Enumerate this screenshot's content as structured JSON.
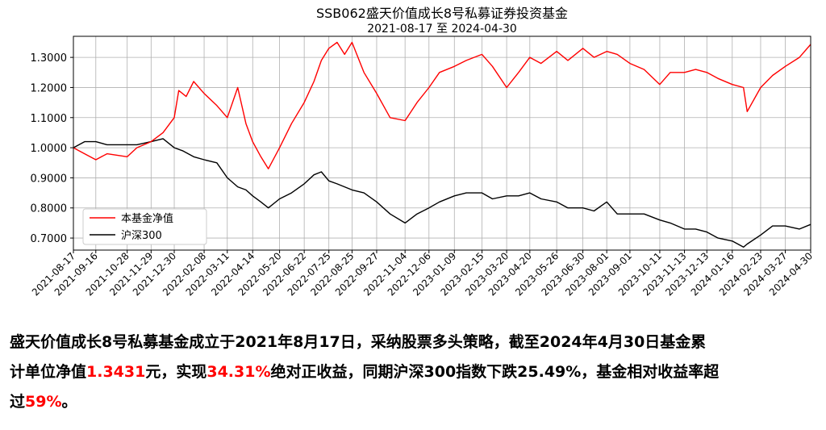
{
  "chart_data": {
    "type": "line",
    "title": "SSB062盛天价值成长8号私募证券投资基金",
    "subtitle": "2021-08-17 至 2024-04-30",
    "x_tick_labels": [
      "2021-08-17",
      "2021-09-16",
      "2021-10-28",
      "2021-11-29",
      "2021-12-30",
      "2022-02-08",
      "2022-03-11",
      "2022-04-14",
      "2022-05-20",
      "2022-06-22",
      "2022-07-25",
      "2022-08-25",
      "2022-09-27",
      "2022-11-04",
      "2022-12-06",
      "2023-01-09",
      "2023-02-15",
      "2023-03-20",
      "2023-04-20",
      "2023-05-26",
      "2023-06-30",
      "2023-08-01",
      "2023-09-01",
      "2023-10-11",
      "2023-11-13",
      "2023-12-13",
      "2024-01-16",
      "2024-02-23",
      "2024-03-27",
      "2024-04-30"
    ],
    "y_tick_labels": [
      "0.7000",
      "0.8000",
      "0.9000",
      "1.0000",
      "1.1000",
      "1.2000",
      "1.3000"
    ],
    "ylim": [
      0.66,
      1.37
    ],
    "grid": true,
    "legend_position": "lower-left",
    "series": [
      {
        "name": "本基金净值",
        "color": "#ff0000",
        "x": [
          "2021-08-17",
          "2021-09-01",
          "2021-09-16",
          "2021-10-01",
          "2021-10-28",
          "2021-11-10",
          "2021-11-29",
          "2021-12-15",
          "2021-12-30",
          "2022-01-05",
          "2022-01-15",
          "2022-01-25",
          "2022-02-08",
          "2022-02-25",
          "2022-03-11",
          "2022-03-25",
          "2022-04-05",
          "2022-04-14",
          "2022-04-25",
          "2022-05-05",
          "2022-05-20",
          "2022-06-05",
          "2022-06-22",
          "2022-07-05",
          "2022-07-15",
          "2022-07-25",
          "2022-08-05",
          "2022-08-15",
          "2022-08-25",
          "2022-09-10",
          "2022-09-27",
          "2022-10-15",
          "2022-11-04",
          "2022-11-20",
          "2022-12-06",
          "2022-12-20",
          "2023-01-09",
          "2023-01-25",
          "2023-02-15",
          "2023-03-01",
          "2023-03-20",
          "2023-04-05",
          "2023-04-20",
          "2023-05-05",
          "2023-05-26",
          "2023-06-10",
          "2023-06-30",
          "2023-07-15",
          "2023-08-01",
          "2023-08-15",
          "2023-09-01",
          "2023-09-20",
          "2023-10-11",
          "2023-10-25",
          "2023-11-13",
          "2023-11-28",
          "2023-12-13",
          "2023-12-28",
          "2024-01-16",
          "2024-01-31",
          "2024-02-05",
          "2024-02-23",
          "2024-03-10",
          "2024-03-27",
          "2024-04-15",
          "2024-04-30"
        ],
        "values": [
          1.0,
          0.98,
          0.96,
          0.98,
          0.97,
          1.0,
          1.02,
          1.05,
          1.1,
          1.19,
          1.17,
          1.22,
          1.18,
          1.14,
          1.1,
          1.2,
          1.08,
          1.02,
          0.97,
          0.93,
          1.0,
          1.08,
          1.15,
          1.22,
          1.29,
          1.33,
          1.35,
          1.31,
          1.35,
          1.25,
          1.18,
          1.1,
          1.09,
          1.15,
          1.2,
          1.25,
          1.27,
          1.29,
          1.31,
          1.27,
          1.2,
          1.25,
          1.3,
          1.28,
          1.32,
          1.29,
          1.33,
          1.3,
          1.32,
          1.31,
          1.28,
          1.26,
          1.21,
          1.25,
          1.25,
          1.26,
          1.25,
          1.23,
          1.21,
          1.2,
          1.12,
          1.2,
          1.24,
          1.27,
          1.3,
          1.3431
        ]
      },
      {
        "name": "沪深300",
        "color": "#000000",
        "x": [
          "2021-08-17",
          "2021-09-01",
          "2021-09-16",
          "2021-10-01",
          "2021-10-28",
          "2021-11-10",
          "2021-11-29",
          "2021-12-15",
          "2021-12-30",
          "2022-01-10",
          "2022-01-25",
          "2022-02-08",
          "2022-02-25",
          "2022-03-11",
          "2022-03-25",
          "2022-04-05",
          "2022-04-14",
          "2022-04-25",
          "2022-05-05",
          "2022-05-20",
          "2022-06-05",
          "2022-06-22",
          "2022-07-05",
          "2022-07-15",
          "2022-07-25",
          "2022-08-05",
          "2022-08-25",
          "2022-09-10",
          "2022-09-27",
          "2022-10-15",
          "2022-11-04",
          "2022-11-20",
          "2022-12-06",
          "2022-12-20",
          "2023-01-09",
          "2023-01-25",
          "2023-02-15",
          "2023-03-01",
          "2023-03-20",
          "2023-04-05",
          "2023-04-20",
          "2023-05-05",
          "2023-05-26",
          "2023-06-10",
          "2023-06-30",
          "2023-07-15",
          "2023-08-01",
          "2023-08-15",
          "2023-09-01",
          "2023-09-20",
          "2023-10-11",
          "2023-10-25",
          "2023-11-13",
          "2023-11-28",
          "2023-12-13",
          "2023-12-28",
          "2024-01-16",
          "2024-01-31",
          "2024-02-05",
          "2024-02-23",
          "2024-03-10",
          "2024-03-27",
          "2024-04-15",
          "2024-04-30"
        ],
        "values": [
          1.0,
          1.02,
          1.02,
          1.01,
          1.01,
          1.01,
          1.02,
          1.03,
          1.0,
          0.99,
          0.97,
          0.96,
          0.95,
          0.9,
          0.87,
          0.86,
          0.84,
          0.82,
          0.8,
          0.83,
          0.85,
          0.88,
          0.91,
          0.92,
          0.89,
          0.88,
          0.86,
          0.85,
          0.82,
          0.78,
          0.75,
          0.78,
          0.8,
          0.82,
          0.84,
          0.85,
          0.85,
          0.83,
          0.84,
          0.84,
          0.85,
          0.83,
          0.82,
          0.8,
          0.8,
          0.79,
          0.82,
          0.78,
          0.78,
          0.78,
          0.76,
          0.75,
          0.73,
          0.73,
          0.72,
          0.7,
          0.69,
          0.67,
          0.68,
          0.71,
          0.74,
          0.74,
          0.73,
          0.7451
        ]
      }
    ]
  },
  "caption": {
    "line1": "盛天价值成长8号私募基金成立于2021年8月17日，采纳股票多头策略，截至2024年4月30日基金累",
    "line2_a": "计单位净值",
    "line2_nav": "1.3431",
    "line2_b": "元，实现",
    "line2_ret": "34.31%",
    "line2_c": "绝对正收益，同期沪深300指数下跌25.49%，基金相对收益率超",
    "line3_a": "过",
    "line3_rel": "59%",
    "line3_b": "。"
  }
}
